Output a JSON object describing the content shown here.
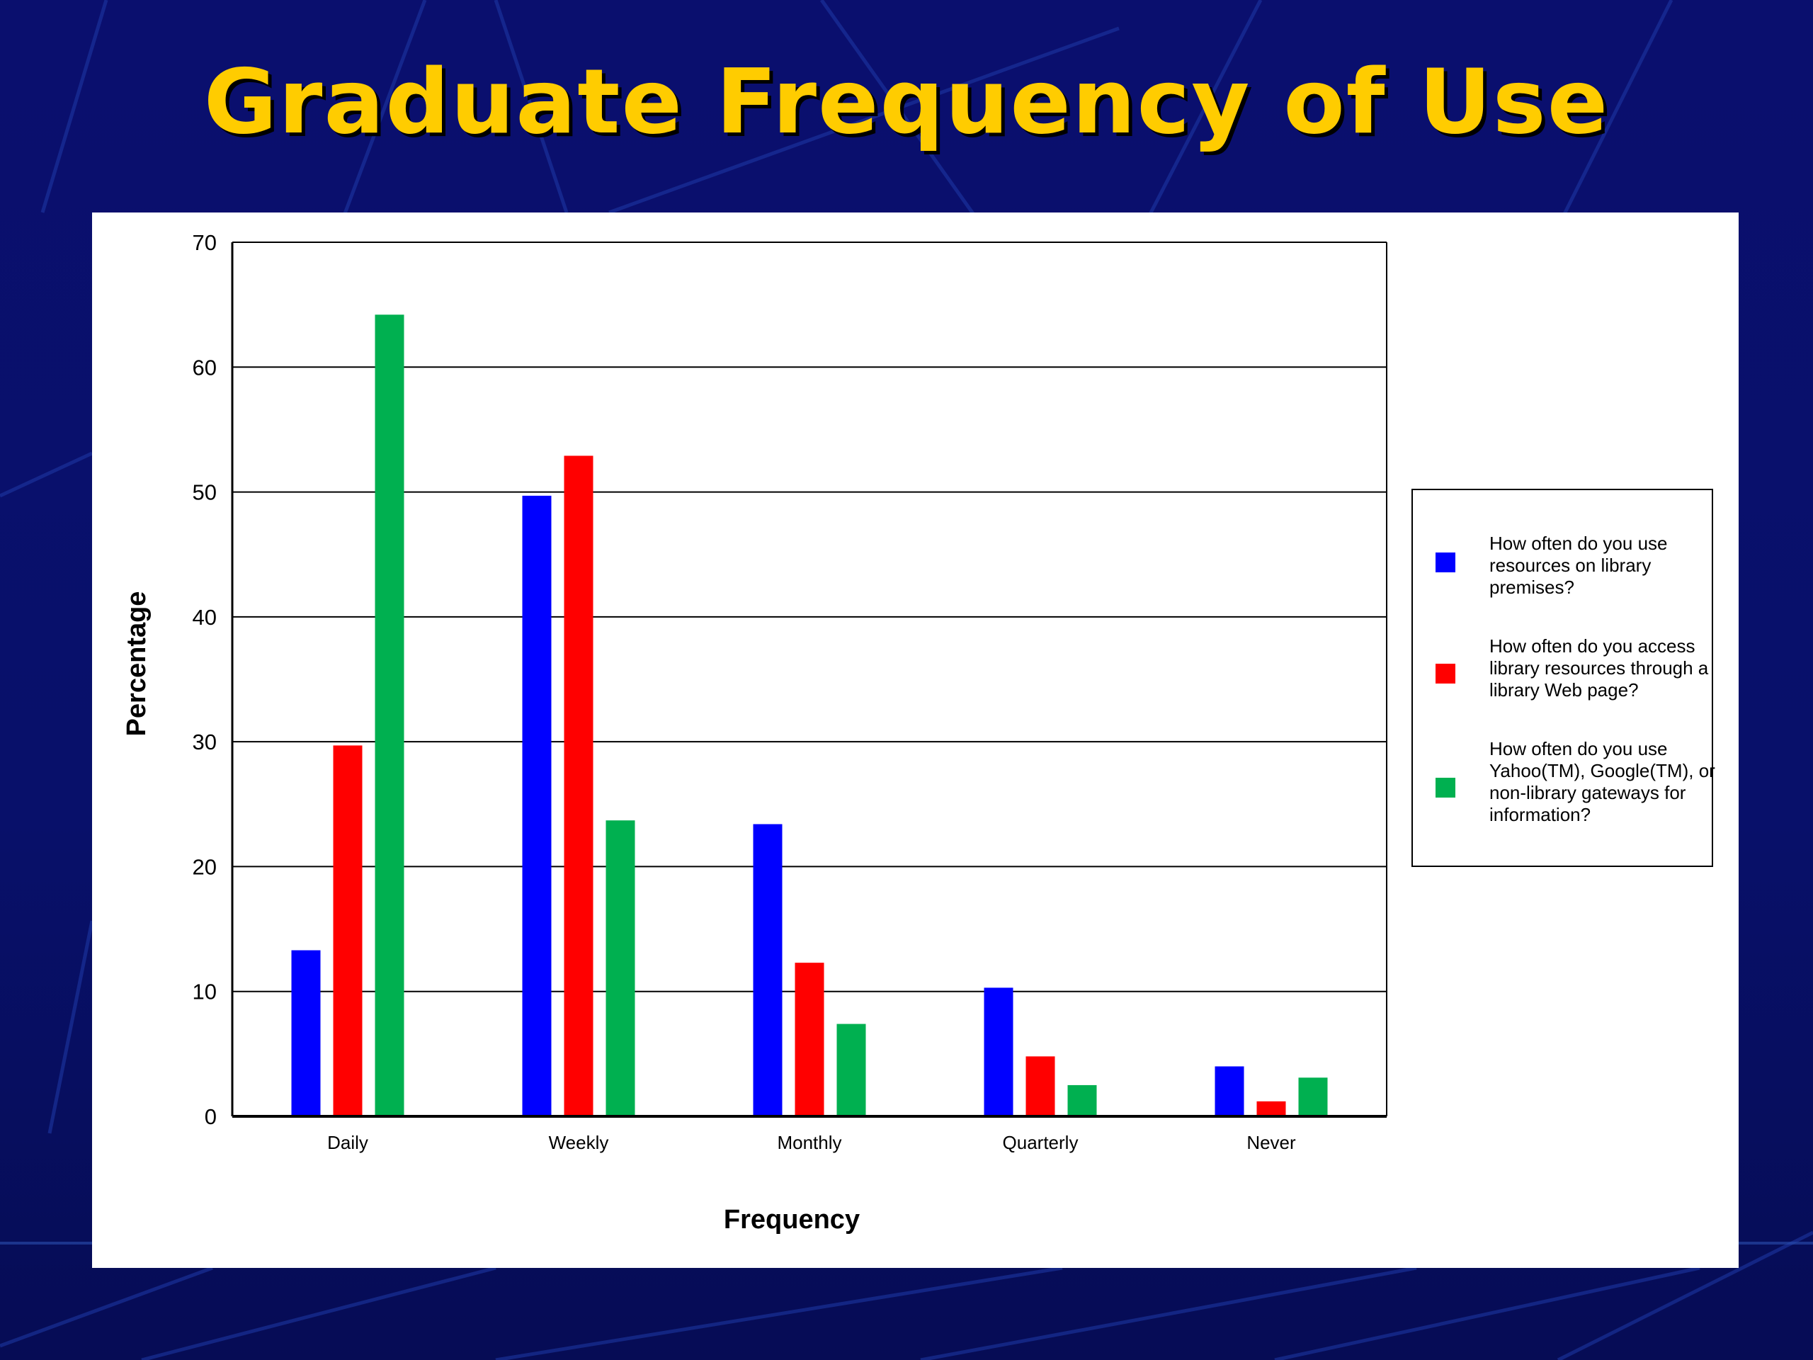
{
  "slide": {
    "title": "Graduate Frequency of Use"
  },
  "colors": {
    "background": "#0a0f6e",
    "title": "#ffcc00",
    "series": [
      "#0000ff",
      "#ff0000",
      "#00b050"
    ]
  },
  "chart_data": {
    "type": "bar",
    "title": "",
    "xlabel": "Frequency",
    "ylabel": "Percentage",
    "ylim": [
      0,
      70
    ],
    "yticks": [
      0,
      10,
      20,
      30,
      40,
      50,
      60,
      70
    ],
    "grid": true,
    "legend_position": "right",
    "categories": [
      "Daily",
      "Weekly",
      "Monthly",
      "Quarterly",
      "Never"
    ],
    "series": [
      {
        "name": "How often do you use resources on library premises?",
        "values": [
          13.3,
          49.7,
          23.4,
          10.3,
          4.0
        ]
      },
      {
        "name": "How often do you access library resources through a library Web page?",
        "values": [
          29.7,
          52.9,
          12.3,
          4.8,
          1.2
        ]
      },
      {
        "name": "How often do you use Yahoo(TM), Google(TM), or non-library gateways for information?",
        "values": [
          64.2,
          23.7,
          7.4,
          2.5,
          3.1
        ]
      }
    ]
  }
}
